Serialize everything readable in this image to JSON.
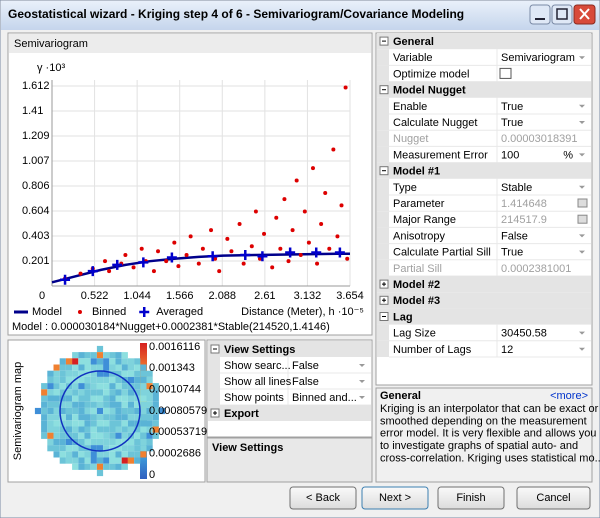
{
  "window": {
    "title": "Geostatistical wizard - Kriging step 4 of 6 - Semivariogram/Covariance Modeling"
  },
  "semivariogram_panel": {
    "header": "Semivariogram",
    "model_text": "Model : 0.000030184*Nugget+0.0002381*Stable(214520,1.4146)"
  },
  "chart_data": {
    "type": "scatter",
    "y_label": "γ ·10³",
    "x_label": "Distance (Meter), h ·10⁻⁵",
    "xlim": [
      0,
      3.654
    ],
    "ylim": [
      0,
      1.612
    ],
    "xticks": [
      0,
      0.522,
      1.044,
      1.566,
      2.088,
      2.61,
      3.132,
      3.654
    ],
    "yticks": [
      0.201,
      0.403,
      0.604,
      0.806,
      1.007,
      1.209,
      1.41,
      1.612
    ],
    "grid": true,
    "series": [
      {
        "name": "Model",
        "color": "#00008b",
        "mark": "line",
        "x": [
          0,
          0.3,
          0.6,
          0.9,
          1.2,
          1.5,
          1.8,
          2.1,
          2.5,
          3.0,
          3.5,
          3.654
        ],
        "values": [
          0.03,
          0.08,
          0.13,
          0.17,
          0.2,
          0.22,
          0.235,
          0.245,
          0.25,
          0.255,
          0.26,
          0.26
        ]
      },
      {
        "name": "Binned",
        "color": "#dd0000",
        "mark": "dot",
        "x": [
          0.16,
          0.35,
          0.5,
          0.65,
          0.7,
          0.85,
          0.9,
          1.0,
          1.1,
          1.15,
          1.25,
          1.3,
          1.4,
          1.5,
          1.55,
          1.65,
          1.7,
          1.8,
          1.85,
          1.95,
          2.0,
          2.05,
          2.15,
          2.2,
          2.3,
          2.35,
          2.45,
          2.5,
          2.55,
          2.6,
          2.7,
          2.75,
          2.8,
          2.85,
          2.9,
          2.95,
          3.0,
          3.05,
          3.1,
          3.15,
          3.2,
          3.25,
          3.3,
          3.35,
          3.4,
          3.45,
          3.5,
          3.55,
          3.6,
          3.62
        ],
        "values": [
          0.06,
          0.1,
          0.14,
          0.2,
          0.12,
          0.18,
          0.25,
          0.15,
          0.3,
          0.2,
          0.12,
          0.28,
          0.2,
          0.35,
          0.16,
          0.25,
          0.4,
          0.18,
          0.3,
          0.45,
          0.22,
          0.12,
          0.38,
          0.28,
          0.5,
          0.18,
          0.32,
          0.6,
          0.22,
          0.42,
          0.15,
          0.55,
          0.3,
          0.7,
          0.2,
          0.45,
          0.85,
          0.25,
          0.6,
          0.35,
          0.95,
          0.18,
          0.5,
          0.75,
          0.3,
          1.1,
          0.4,
          0.65,
          1.6,
          0.22
        ]
      },
      {
        "name": "Averaged",
        "color": "#0000cc",
        "mark": "cross",
        "x": [
          0.16,
          0.5,
          0.8,
          1.12,
          1.47,
          1.97,
          2.37,
          2.58,
          2.92,
          3.24,
          3.53
        ],
        "values": [
          0.05,
          0.12,
          0.17,
          0.19,
          0.23,
          0.24,
          0.25,
          0.24,
          0.27,
          0.27,
          0.27
        ]
      }
    ]
  },
  "map_panel": {
    "label": "Semivariogram map",
    "legend": [
      "0.0016116",
      "0.001343",
      "0.0010744",
      "0.00080579",
      "0.00053719",
      "0.0002686",
      "0"
    ]
  },
  "view_settings": {
    "sections": [
      {
        "title": "View Settings",
        "rows": [
          {
            "name": "Show searc...",
            "value": "False"
          },
          {
            "name": "Show all lines",
            "value": "False"
          },
          {
            "name": "Show points",
            "value": "Binned and..."
          }
        ]
      },
      {
        "title": "Export",
        "collapsed": true,
        "rows": []
      }
    ],
    "footer": "View Settings"
  },
  "properties": {
    "sections": [
      {
        "title": "General",
        "rows": [
          {
            "name": "Variable",
            "value": "Semivariogram"
          },
          {
            "name": "Optimize model",
            "value": ""
          }
        ]
      },
      {
        "title": "Model Nugget",
        "rows": [
          {
            "name": "Enable",
            "value": "True"
          },
          {
            "name": "Calculate Nugget",
            "value": "True"
          },
          {
            "name": "Nugget",
            "value": "0.00003018391",
            "greyed": true
          },
          {
            "name": "Measurement Error",
            "value": "100",
            "unit": "%"
          }
        ]
      },
      {
        "title": "Model #1",
        "rows": [
          {
            "name": "Type",
            "value": "Stable"
          },
          {
            "name": "Parameter",
            "value": "1.414648",
            "value_greyed": true
          },
          {
            "name": "Major Range",
            "value": "214517.9",
            "value_greyed": true
          },
          {
            "name": "Anisotropy",
            "value": "False"
          },
          {
            "name": "Calculate Partial Sill",
            "value": "True"
          },
          {
            "name": "Partial Sill",
            "value": "0.0002381001",
            "greyed": true
          }
        ]
      },
      {
        "title": "Model #2",
        "collapsed": true,
        "rows": []
      },
      {
        "title": "Model #3",
        "collapsed": true,
        "rows": []
      },
      {
        "title": "Lag",
        "rows": [
          {
            "name": "Lag Size",
            "value": "30450.58"
          },
          {
            "name": "Number of Lags",
            "value": "12"
          }
        ]
      }
    ]
  },
  "description": {
    "title": "General",
    "more": "<more>",
    "lines": [
      "Kriging is an interpolator that can be exact or",
      "smoothed depending on the measurement",
      "error model. It is very flexible and allows you",
      "to investigate graphs of spatial auto- and",
      "cross-correlation. Kriging uses statistical mo..."
    ]
  },
  "buttons": [
    "< Back",
    "Next >",
    "Finish",
    "Cancel"
  ]
}
